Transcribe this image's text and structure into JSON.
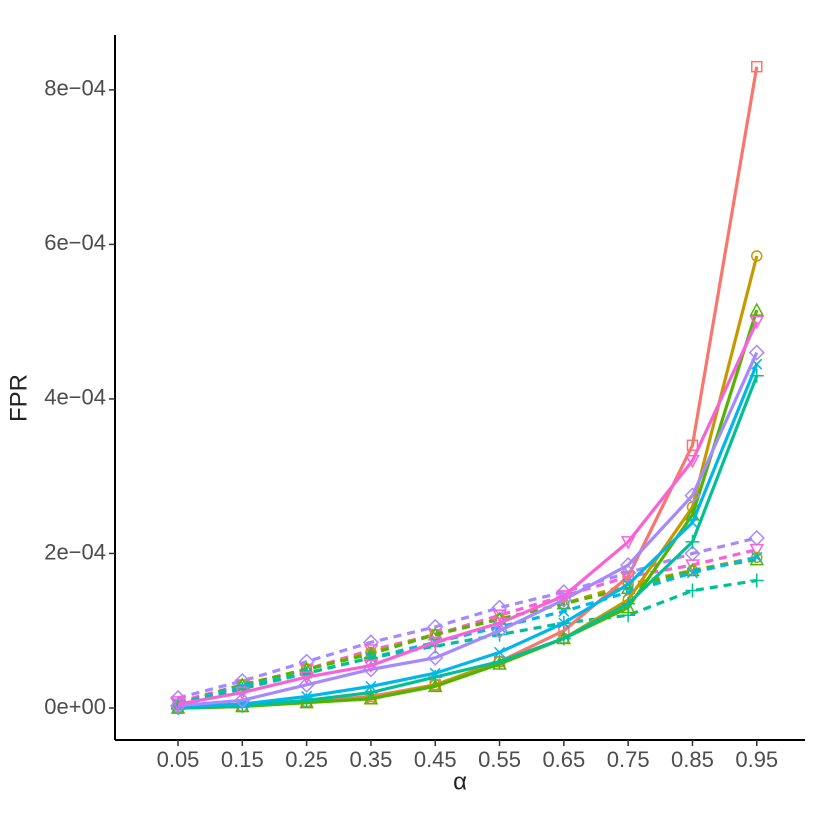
{
  "chart_data": {
    "type": "line",
    "x_label": "α",
    "y_label": "FPR",
    "x": [
      0.05,
      0.15,
      0.25,
      0.35,
      0.45,
      0.55,
      0.65,
      0.75,
      0.85,
      0.95
    ],
    "xlim": [
      -0.048,
      1.025
    ],
    "xticks": [
      0.05,
      0.15,
      0.25,
      0.35,
      0.45,
      0.55,
      0.65,
      0.75,
      0.85,
      0.95
    ],
    "ylim": [
      -4.14e-05,
      0.000871
    ],
    "yticks": [
      {
        "value": 0,
        "label": "0e+00"
      },
      {
        "value": 0.0002,
        "label": "2e−04"
      },
      {
        "value": 0.0004,
        "label": "4e−04"
      },
      {
        "value": 0.0006,
        "label": "6e−04"
      },
      {
        "value": 0.0008,
        "label": "8e−04"
      }
    ],
    "series": [
      {
        "color": "#A58AFF",
        "marker": "diamond",
        "dashed": true,
        "values": [
          1.3e-05,
          3.5e-05,
          6e-05,
          8.5e-05,
          0.000105,
          0.00013,
          0.00015,
          0.000175,
          0.0002,
          0.00022
        ]
      },
      {
        "color": "#FB61D7",
        "marker": "down",
        "dashed": true,
        "values": [
          8e-06,
          3e-05,
          5e-05,
          7.5e-05,
          9.5e-05,
          0.00012,
          0.000145,
          0.00017,
          0.000185,
          0.000205
        ]
      },
      {
        "color": "#C49A00",
        "marker": "circle",
        "dashed": true,
        "values": [
          5e-06,
          3e-05,
          5e-05,
          7.2e-05,
          9.5e-05,
          0.000115,
          0.000135,
          0.00016,
          0.000178,
          0.000195
        ]
      },
      {
        "color": "#53B400",
        "marker": "triangle",
        "dashed": true,
        "values": [
          5e-06,
          3e-05,
          5e-05,
          7e-05,
          9.5e-05,
          0.000115,
          0.000135,
          0.000155,
          0.000178,
          0.000192
        ]
      },
      {
        "color": "#00B6EB",
        "marker": "x",
        "dashed": true,
        "values": [
          5e-06,
          2.8e-05,
          4.5e-05,
          6.5e-05,
          8.5e-05,
          0.000105,
          0.000125,
          0.00015,
          0.000175,
          0.000195
        ]
      },
      {
        "color": "#00C094",
        "marker": "plus",
        "dashed": true,
        "values": [
          3e-06,
          2.5e-05,
          4.5e-05,
          6.5e-05,
          8e-05,
          9.5e-05,
          0.00011,
          0.00012,
          0.000152,
          0.000165
        ]
      },
      {
        "color": "#F8766D",
        "marker": "square",
        "dashed": false,
        "values": [
          0.0,
          2e-06,
          8e-06,
          1.5e-05,
          3e-05,
          6e-05,
          0.0001,
          0.00017,
          0.00034,
          0.00083
        ]
      },
      {
        "color": "#C49A00",
        "marker": "circle",
        "dashed": false,
        "values": [
          0.0,
          2e-06,
          8e-06,
          1.2e-05,
          3e-05,
          6e-05,
          9e-05,
          0.00014,
          0.00026,
          0.000585
        ]
      },
      {
        "color": "#53B400",
        "marker": "triangle",
        "dashed": false,
        "values": [
          0.0,
          2e-06,
          7e-06,
          1.2e-05,
          2.8e-05,
          5.7e-05,
          9e-05,
          0.00013,
          0.00025,
          0.000515
        ]
      },
      {
        "color": "#00C094",
        "marker": "plus",
        "dashed": false,
        "values": [
          0.0,
          3e-06,
          1e-05,
          2e-05,
          4e-05,
          6e-05,
          9e-05,
          0.000135,
          0.000215,
          0.00043
        ]
      },
      {
        "color": "#00B6EB",
        "marker": "x",
        "dashed": false,
        "values": [
          2e-06,
          5e-06,
          1.5e-05,
          2.8e-05,
          4.5e-05,
          7.2e-05,
          0.00011,
          0.00016,
          0.00024,
          0.000445
        ]
      },
      {
        "color": "#A58AFF",
        "marker": "diamond",
        "dashed": false,
        "values": [
          3e-06,
          1e-05,
          3e-05,
          5e-05,
          6.5e-05,
          0.0001,
          0.00014,
          0.000185,
          0.000275,
          0.00046
        ]
      },
      {
        "color": "#FB61D7",
        "marker": "down",
        "dashed": false,
        "values": [
          5e-06,
          2e-05,
          4e-05,
          5.5e-05,
          8.5e-05,
          0.00011,
          0.000145,
          0.000215,
          0.00032,
          0.0005
        ]
      }
    ]
  }
}
